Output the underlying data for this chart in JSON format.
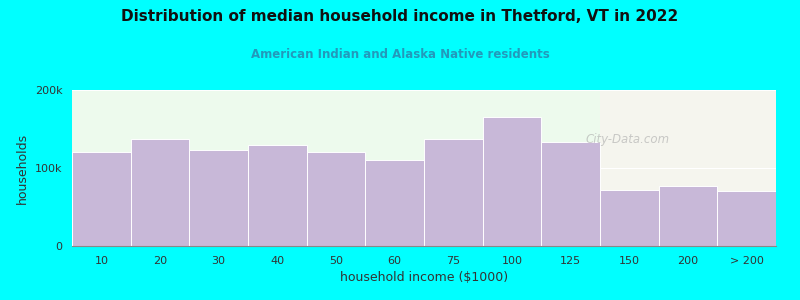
{
  "title": "Distribution of median household income in Thetford, VT in 2022",
  "subtitle": "American Indian and Alaska Native residents",
  "xlabel": "household income ($1000)",
  "ylabel": "households",
  "bar_color": "#c8b8d8",
  "background_color": "#00ffff",
  "plot_bg_color_left": "#edfaed",
  "plot_bg_color_right": "#f5f5ee",
  "categories": [
    "10",
    "20",
    "30",
    "40",
    "50",
    "60",
    "75",
    "100",
    "125",
    "150",
    "200",
    "> 200"
  ],
  "values": [
    120000,
    137000,
    123000,
    130000,
    120000,
    110000,
    137000,
    165000,
    133000,
    72000,
    77000,
    70000
  ],
  "bar_edges": [
    0,
    1,
    2,
    3,
    4,
    5,
    6,
    7,
    8,
    9,
    10,
    11
  ],
  "ylim": [
    0,
    200000
  ],
  "yticks": [
    0,
    100000,
    200000
  ],
  "ytick_labels": [
    "0",
    "100k",
    "200k"
  ],
  "watermark": "City-Data.com",
  "bg_split_index": 8.5
}
